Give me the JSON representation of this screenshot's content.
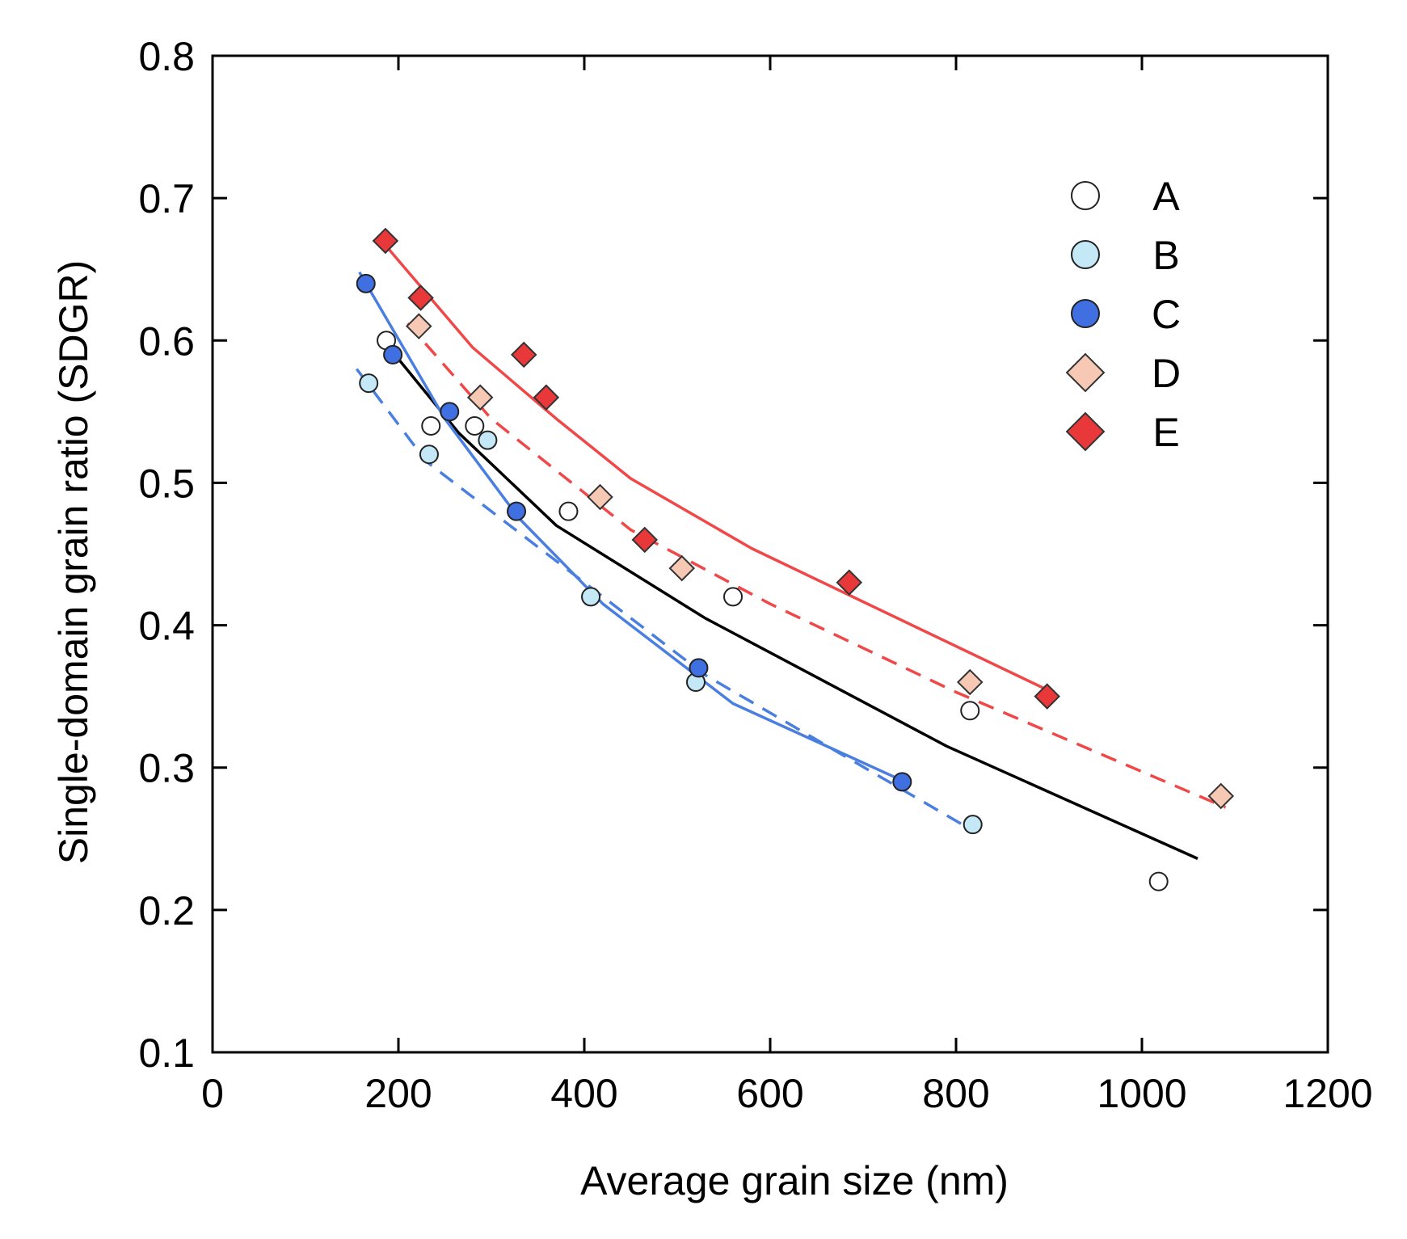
{
  "chart_data": {
    "type": "scatter",
    "title": "",
    "xlabel": "Average grain size (nm)",
    "ylabel": "Single-domain grain ratio (SDGR)",
    "xlim": [
      0,
      1200
    ],
    "ylim": [
      0.1,
      0.8
    ],
    "xticks": [
      0,
      200,
      400,
      600,
      800,
      1000,
      1200
    ],
    "yticks": [
      0.1,
      0.2,
      0.3,
      0.4,
      0.5,
      0.6,
      0.7,
      0.8
    ],
    "xtick_labels": [
      "0",
      "200",
      "400",
      "600",
      "800",
      "1000",
      "1200"
    ],
    "ytick_labels": [
      "0.1",
      "0.2",
      "0.3",
      "0.4",
      "0.5",
      "0.6",
      "0.7",
      "0.8"
    ],
    "grid": false,
    "legend_position": "top-right",
    "series": [
      {
        "name": "A",
        "marker": "circle",
        "fill": "#ffffff",
        "stroke": "#222222",
        "points": [
          [
            187,
            0.6
          ],
          [
            235,
            0.54
          ],
          [
            282,
            0.54
          ],
          [
            383,
            0.48
          ],
          [
            560,
            0.42
          ],
          [
            815,
            0.34
          ],
          [
            1018,
            0.22
          ]
        ]
      },
      {
        "name": "B",
        "marker": "circle",
        "fill": "#c5e8f7",
        "stroke": "#222222",
        "points": [
          [
            168,
            0.57
          ],
          [
            233,
            0.52
          ],
          [
            296,
            0.53
          ],
          [
            407,
            0.42
          ],
          [
            520,
            0.36
          ],
          [
            818,
            0.26
          ]
        ]
      },
      {
        "name": "C",
        "marker": "circle",
        "fill": "#3f6fe0",
        "stroke": "#222222",
        "points": [
          [
            165,
            0.64
          ],
          [
            194,
            0.59
          ],
          [
            255,
            0.55
          ],
          [
            327,
            0.48
          ],
          [
            523,
            0.37
          ],
          [
            742,
            0.29
          ]
        ]
      },
      {
        "name": "D",
        "marker": "diamond",
        "fill": "#f7c8b4",
        "stroke": "#333333",
        "points": [
          [
            222,
            0.61
          ],
          [
            288,
            0.56
          ],
          [
            417,
            0.49
          ],
          [
            505,
            0.44
          ],
          [
            815,
            0.36
          ],
          [
            1085,
            0.28
          ]
        ]
      },
      {
        "name": "E",
        "marker": "diamond",
        "fill": "#e8383a",
        "stroke": "#333333",
        "points": [
          [
            186,
            0.67
          ],
          [
            224,
            0.63
          ],
          [
            335,
            0.59
          ],
          [
            359,
            0.56
          ],
          [
            465,
            0.46
          ],
          [
            685,
            0.43
          ],
          [
            898,
            0.35
          ]
        ]
      }
    ],
    "fits": [
      {
        "name": "A fit",
        "color": "#000000",
        "dash": "solid",
        "points": [
          [
            190,
            0.595
          ],
          [
            265,
            0.535
          ],
          [
            370,
            0.47
          ],
          [
            530,
            0.405
          ],
          [
            790,
            0.315
          ],
          [
            1060,
            0.236
          ]
        ]
      },
      {
        "name": "B fit",
        "color": "#4a7fe0",
        "dash": "dashed",
        "points": [
          [
            155,
            0.58
          ],
          [
            230,
            0.515
          ],
          [
            360,
            0.45
          ],
          [
            530,
            0.365
          ],
          [
            820,
            0.255
          ]
        ]
      },
      {
        "name": "C fit",
        "color": "#4a7fe0",
        "dash": "solid",
        "points": [
          [
            158,
            0.648
          ],
          [
            250,
            0.545
          ],
          [
            330,
            0.475
          ],
          [
            420,
            0.415
          ],
          [
            560,
            0.345
          ],
          [
            745,
            0.29
          ]
        ]
      },
      {
        "name": "D fit",
        "color": "#f04848",
        "dash": "dashed",
        "points": [
          [
            210,
            0.612
          ],
          [
            300,
            0.545
          ],
          [
            450,
            0.467
          ],
          [
            600,
            0.415
          ],
          [
            800,
            0.353
          ],
          [
            1090,
            0.272
          ]
        ]
      },
      {
        "name": "E fit",
        "color": "#f04848",
        "dash": "solid",
        "points": [
          [
            182,
            0.67
          ],
          [
            280,
            0.595
          ],
          [
            370,
            0.545
          ],
          [
            450,
            0.503
          ],
          [
            580,
            0.454
          ],
          [
            900,
            0.354
          ]
        ]
      }
    ]
  }
}
